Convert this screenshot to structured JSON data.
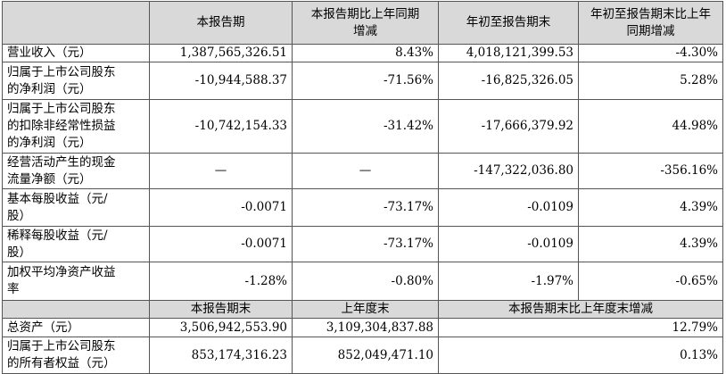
{
  "table": {
    "header": [
      "本报告期",
      "本报告期比上年同期\n增减",
      "年初至报告期末",
      "年初至报告期末比上年\n同期增减"
    ],
    "rows": [
      [
        "营业收入（元）",
        "1,387,565,326.51",
        "8.43%",
        "4,018,121,399.53",
        "-4.30%"
      ],
      [
        "归属于上市公司股东\n的净利润（元）",
        "-10,944,588.37",
        "-71.56%",
        "-16,825,326.05",
        "5.28%"
      ],
      [
        "归属于上市公司股东\n的扣除非经常性损益\n的净利润（元）",
        "-10,742,154.33",
        "-31.42%",
        "-17,666,379.92",
        "44.98%"
      ],
      [
        "经营活动产生的现金\n流量净额（元）",
        "—",
        "—",
        "-147,322,036.80",
        "-356.16%"
      ],
      [
        "基本每股收益（元/\n股）",
        "-0.0071",
        "-73.17%",
        "-0.0109",
        "4.39%"
      ],
      [
        "稀释每股收益（元/\n股）",
        "-0.0071",
        "-73.17%",
        "-0.0109",
        "4.39%"
      ],
      [
        "加权平均净资产收益\n率",
        "-1.28%",
        "-0.80%",
        "-1.97%",
        "-0.65%"
      ]
    ],
    "header2": [
      "本报告期末",
      "上年度末",
      "本报告期末比上年度末增减"
    ],
    "rows2": [
      [
        "总资产（元）",
        "3,506,942,553.90",
        "3,109,304,837.88",
        "12.79%"
      ],
      [
        "归属于上市公司股东\n的所有者权益（元）",
        "853,174,316.23",
        "852,049,471.10",
        "0.13%"
      ]
    ]
  }
}
